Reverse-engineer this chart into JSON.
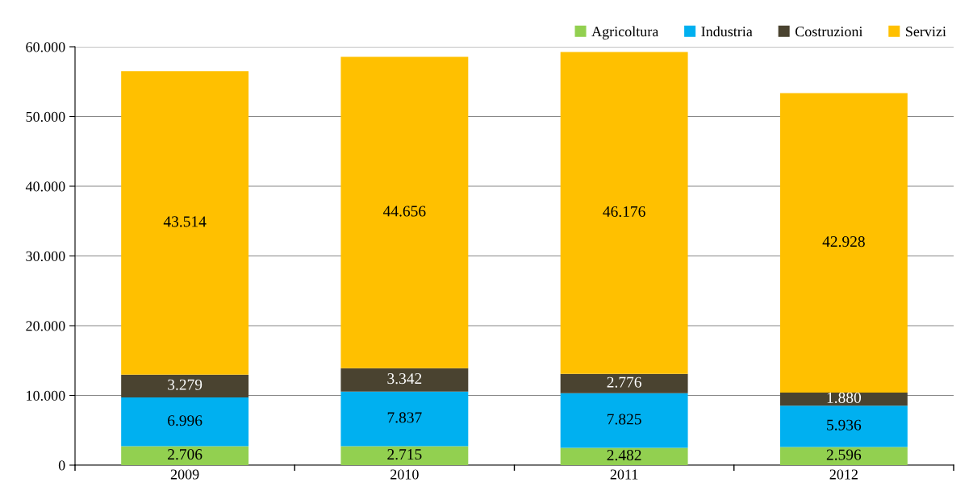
{
  "chart_data": {
    "type": "bar",
    "stacked": true,
    "categories": [
      "2009",
      "2010",
      "2011",
      "2012"
    ],
    "series": [
      {
        "name": "Agricoltura",
        "color": "#92d050",
        "values": [
          2706,
          2715,
          2482,
          2596
        ],
        "value_labels": [
          "2.706",
          "2.715",
          "2.482",
          "2.596"
        ]
      },
      {
        "name": "Industria",
        "color": "#00b0f0",
        "values": [
          6996,
          7837,
          7825,
          5936
        ],
        "value_labels": [
          "6.996",
          "7.837",
          "7.825",
          "5.936"
        ]
      },
      {
        "name": "Costruzioni",
        "color": "#4a4330",
        "values": [
          3279,
          3342,
          2776,
          1880
        ],
        "value_labels": [
          "3.279",
          "3.342",
          "2.776",
          "1.880"
        ]
      },
      {
        "name": "Servizi",
        "color": "#ffc000",
        "values": [
          43514,
          44656,
          46176,
          42928
        ],
        "value_labels": [
          "43.514",
          "44.656",
          "46.176",
          "42.928"
        ]
      }
    ],
    "ylim": [
      0,
      60000
    ],
    "yticks": [
      {
        "value": 0,
        "label": "0"
      },
      {
        "value": 10000,
        "label": "10.000"
      },
      {
        "value": 20000,
        "label": "20.000"
      },
      {
        "value": 30000,
        "label": "30.000"
      },
      {
        "value": 40000,
        "label": "40.000"
      },
      {
        "value": 50000,
        "label": "50.000"
      },
      {
        "value": 60000,
        "label": "60.000"
      }
    ],
    "grid": "y",
    "legend": "top right"
  }
}
